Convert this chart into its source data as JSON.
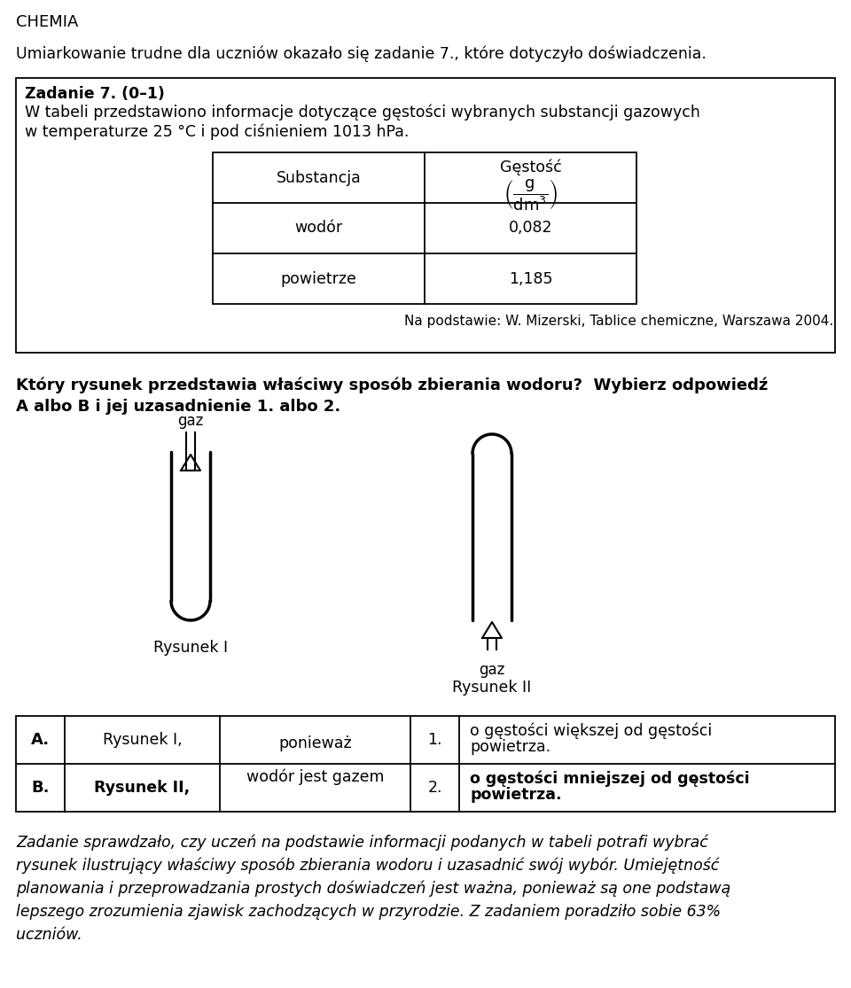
{
  "title_chemia": "CHEMIA",
  "line1": "Umiarkowanie trudne dla uczniów okazało się zadanie 7., które dotyczyło doświadczenia.",
  "box_title": "Zadanie 7. (0–1)",
  "box_text1": "W tabeli przedstawiono informacje dotyczące gęstości wybranych substancji gazowych",
  "box_text2": "w temperaturze 25 °C i pod ciśnieniem 1013 hPa.",
  "table_col1_header": "Substancja",
  "table_col2_header": "Gęstość",
  "table_row1_name": "wodór",
  "table_row1_val": "0,082",
  "table_row2_name": "powietrze",
  "table_row2_val": "1,185",
  "citation": "Na podstawie: W. Mizerski, Tablice chemiczne, Warszawa 2004.",
  "question_line1": "Który rysunek przedstawia właściwy sposób zbierania wodoru?  Wybierz odpowiedź",
  "question_line2": "A albo B i jej uzasadnienie 1. albo 2.",
  "label_rysunek1": "Rysunek I",
  "label_rysunek2": "Rysunek II",
  "label_gaz1": "gaz",
  "label_gaz2": "gaz",
  "answer_A": "A.",
  "answer_B": "B.",
  "answer_A_text": "Rysunek I,",
  "answer_B_text": "Rysunek II,",
  "answer_mid1": "ponieważ",
  "answer_mid2": "wodór jest gazem",
  "answer_1": "1.",
  "answer_2": "2.",
  "answer_1_text1": "o gęstości większej od gęstości",
  "answer_1_text2": "powietrza.",
  "answer_2_text1": "o gęstości mniejszej od gęstości",
  "answer_2_text2": "powietrza.",
  "footer1": "Zadanie sprawdzało, czy uczeń na podstawie informacji podanych w tabeli potrafi wybrać",
  "footer2": "rysunek ilustrujący właściwy sposób zbierania wodoru i uzasadnić swój wybór. Umiejętność",
  "footer3": "planowania i przeprowadzania prostych doświadczeń jest ważna, ponieważ są one podstawą",
  "footer4": "lepszego zrozumienia zjawisk zachodzących w przyrodzie. Z zadaniem poradziło sobie 63%",
  "footer5": "uczniów.",
  "bg_color": "#ffffff"
}
